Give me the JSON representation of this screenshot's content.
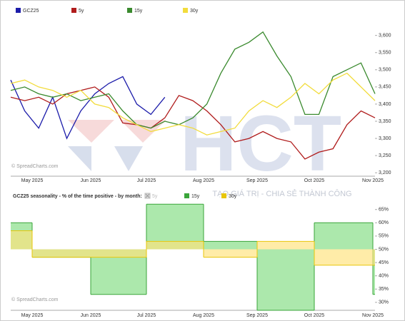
{
  "chart_data": [
    {
      "type": "line",
      "xticklabels": [
        "May 2025",
        "Jun 2025",
        "Jul 2025",
        "Aug 2025",
        "Sep 2025",
        "Oct 2025",
        "Nov 2025"
      ],
      "series": [
        {
          "name": "GCZ25",
          "color": "#1c1caa",
          "values": [
            3470,
            3380,
            3330,
            3420,
            3300,
            3380,
            3430,
            3460,
            3480,
            3400,
            3370,
            3420,
            null,
            null,
            null,
            null,
            null,
            null,
            null,
            null,
            null,
            null,
            null,
            null,
            null,
            null,
            null
          ]
        },
        {
          "name": "5y",
          "color": "#b01c1c",
          "values": [
            3420,
            3410,
            3420,
            3400,
            3430,
            3440,
            3450,
            3420,
            3345,
            3340,
            3330,
            3360,
            3425,
            3410,
            3380,
            3340,
            3290,
            3300,
            3320,
            3300,
            3290,
            3240,
            3260,
            3270,
            3340,
            3380,
            3360
          ]
        },
        {
          "name": "15y",
          "color": "#3a8a2e",
          "values": [
            3440,
            3450,
            3430,
            3420,
            3430,
            3410,
            3420,
            3430,
            3380,
            3340,
            3330,
            3350,
            3340,
            3360,
            3400,
            3490,
            3560,
            3580,
            3610,
            3540,
            3480,
            3370,
            3370,
            3480,
            3500,
            3520,
            3430
          ]
        },
        {
          "name": "30y",
          "color": "#f2dc3c",
          "values": [
            3460,
            3470,
            3450,
            3440,
            3420,
            3440,
            3400,
            3390,
            3360,
            3340,
            3320,
            3330,
            3340,
            3330,
            3310,
            3320,
            3330,
            3380,
            3410,
            3390,
            3420,
            3460,
            3430,
            3470,
            3490,
            3450,
            3410
          ]
        }
      ],
      "ylim": [
        3190,
        3645
      ],
      "yticks": [
        {
          "value": 3200,
          "label": "3,200"
        },
        {
          "value": 3250,
          "label": "3,250"
        },
        {
          "value": 3300,
          "label": "3,300"
        },
        {
          "value": 3350,
          "label": "3,350"
        },
        {
          "value": 3400,
          "label": "3,400"
        },
        {
          "value": 3450,
          "label": "3,450"
        },
        {
          "value": 3500,
          "label": "3,500"
        },
        {
          "value": 3550,
          "label": "3,550"
        },
        {
          "value": 3600,
          "label": "3,600"
        }
      ],
      "credit": "© SpreadCharts.com",
      "watermark": "HCT",
      "slogan": "TẠO GIÁ TRỊ - CHIA SẺ THÀNH CÔNG"
    },
    {
      "type": "step-area",
      "title": "GCZ25 seasonality - % of the time positive - by month:",
      "categories": [
        null,
        "May 2025",
        "Jun 2025",
        "Jul 2025",
        "Aug 2025",
        "Sep 2025",
        "Oct 2025",
        "Nov 2025"
      ],
      "hidden_series": "5y",
      "baseline": 50,
      "series": [
        {
          "name": "15y",
          "color": "#3aa53a",
          "values": [
            60,
            47,
            33,
            67,
            53,
            27,
            60,
            33
          ]
        },
        {
          "name": "30y",
          "color": "#e8c60a",
          "values": [
            57,
            47,
            47,
            53,
            47,
            53,
            44,
            44
          ]
        }
      ],
      "ylim": [
        27,
        66
      ],
      "yticks": [
        {
          "value": 30,
          "label": "30%"
        },
        {
          "value": 35,
          "label": "35%"
        },
        {
          "value": 40,
          "label": "40%"
        },
        {
          "value": 45,
          "label": "45%"
        },
        {
          "value": 50,
          "label": "50%"
        },
        {
          "value": 55,
          "label": "55%"
        },
        {
          "value": 60,
          "label": "60%"
        },
        {
          "value": 65,
          "label": "65%"
        }
      ],
      "credit": "© SpreadCharts.com"
    }
  ]
}
